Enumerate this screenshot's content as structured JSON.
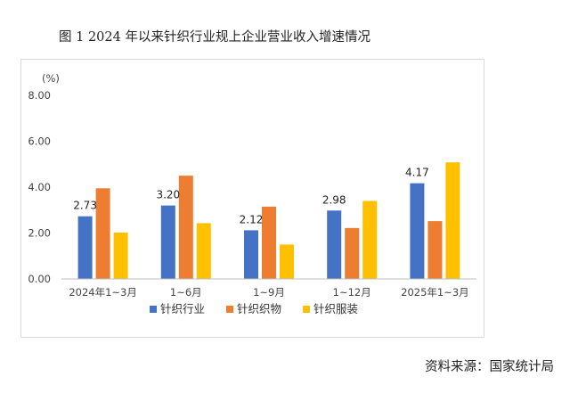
{
  "figure": {
    "title": "图 1    2024 年以来针织行业规上企业营业收入增速情况",
    "source": "资料来源：国家统计局"
  },
  "colors": {
    "series_1": "#4472C4",
    "series_2": "#ED7D31",
    "series_3": "#FFC000",
    "frame": "#d9d9d9",
    "axis": "#bfbfbf"
  },
  "chart_data": {
    "type": "bar",
    "title": "",
    "ylabel": "(%)",
    "xlabel": "",
    "ylim": [
      0,
      8
    ],
    "yticks": [
      "0.00",
      "2.00",
      "4.00",
      "6.00",
      "8.00"
    ],
    "grid": false,
    "legend_position": "bottom",
    "categories": [
      "2024年1~3月",
      "1~6月",
      "1~9月",
      "1~12月",
      "2025年1~3月"
    ],
    "series": [
      {
        "name": "针织行业",
        "values": [
          2.73,
          3.2,
          2.12,
          2.98,
          4.17
        ],
        "data_labels": [
          "2.73",
          "3.20",
          "2.12",
          "2.98",
          "4.17"
        ]
      },
      {
        "name": "针织织物",
        "values": [
          3.95,
          4.5,
          3.15,
          2.22,
          2.52
        ]
      },
      {
        "name": "针织服装",
        "values": [
          2.02,
          2.43,
          1.5,
          3.4,
          5.08
        ]
      }
    ]
  }
}
